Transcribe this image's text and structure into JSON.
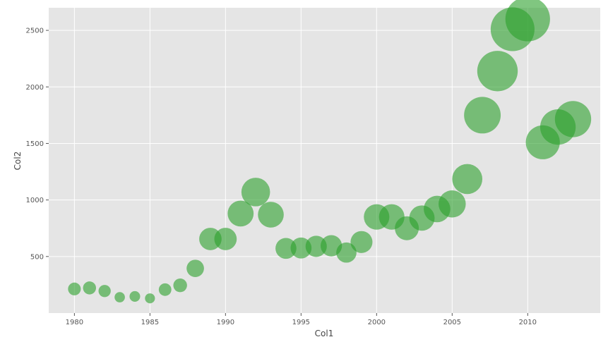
{
  "chart_data": {
    "type": "scatter",
    "title": "",
    "xlabel": "Col1",
    "ylabel": "Col2",
    "xlim": [
      1978.3,
      2014.8
    ],
    "ylim": [
      0,
      2700
    ],
    "xticks": [
      1980,
      1985,
      1990,
      1995,
      2000,
      2005,
      2010
    ],
    "yticks": [
      500,
      1000,
      1500,
      2000,
      2500
    ],
    "grid": true,
    "colors": {
      "background": "#e5e5e5",
      "grid": "#ffffff",
      "marker": "#2ca02c"
    },
    "marker_alpha": 0.6,
    "points": [
      {
        "x": 1980,
        "y": 213
      },
      {
        "x": 1981,
        "y": 222
      },
      {
        "x": 1982,
        "y": 195
      },
      {
        "x": 1983,
        "y": 140
      },
      {
        "x": 1984,
        "y": 147
      },
      {
        "x": 1985,
        "y": 130
      },
      {
        "x": 1986,
        "y": 207
      },
      {
        "x": 1987,
        "y": 245
      },
      {
        "x": 1988,
        "y": 395
      },
      {
        "x": 1989,
        "y": 655
      },
      {
        "x": 1990,
        "y": 655
      },
      {
        "x": 1991,
        "y": 880
      },
      {
        "x": 1992,
        "y": 1070
      },
      {
        "x": 1993,
        "y": 870
      },
      {
        "x": 1994,
        "y": 572
      },
      {
        "x": 1995,
        "y": 575
      },
      {
        "x": 1996,
        "y": 590
      },
      {
        "x": 1997,
        "y": 595
      },
      {
        "x": 1998,
        "y": 535
      },
      {
        "x": 1999,
        "y": 628
      },
      {
        "x": 2000,
        "y": 850
      },
      {
        "x": 2001,
        "y": 850
      },
      {
        "x": 2002,
        "y": 750
      },
      {
        "x": 2003,
        "y": 840
      },
      {
        "x": 2004,
        "y": 920
      },
      {
        "x": 2005,
        "y": 965
      },
      {
        "x": 2006,
        "y": 1185
      },
      {
        "x": 2007,
        "y": 1750
      },
      {
        "x": 2008,
        "y": 2140
      },
      {
        "x": 2009,
        "y": 2510
      },
      {
        "x": 2010,
        "y": 2600
      },
      {
        "x": 2011,
        "y": 1510
      },
      {
        "x": 2012,
        "y": 1645
      },
      {
        "x": 2013,
        "y": 1715
      }
    ]
  }
}
